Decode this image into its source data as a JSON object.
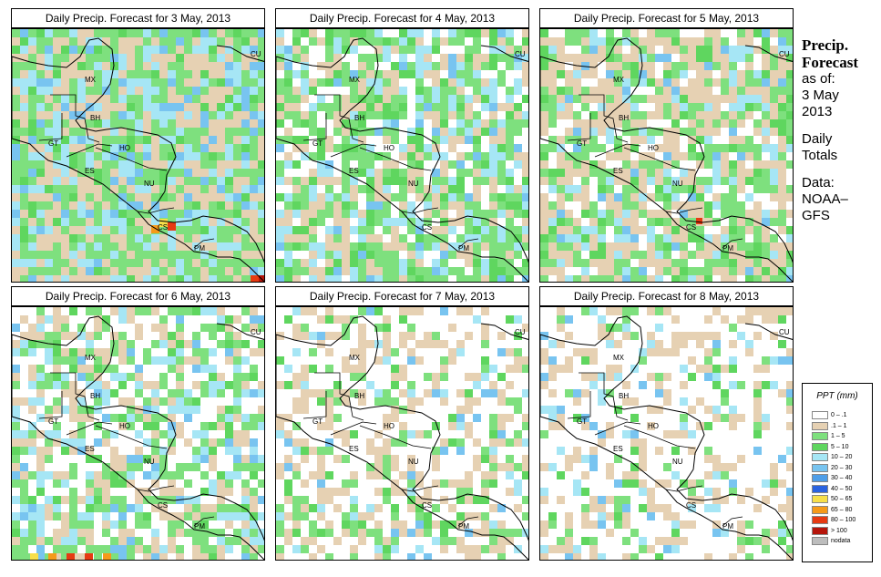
{
  "panels": [
    {
      "title": "Daily Precip. Forecast for  3 May, 2013"
    },
    {
      "title": "Daily Precip. Forecast for  4 May, 2013"
    },
    {
      "title": "Daily Precip. Forecast for  5 May, 2013"
    },
    {
      "title": "Daily Precip. Forecast for  6 May, 2013"
    },
    {
      "title": "Daily Precip. Forecast for  7 May, 2013"
    },
    {
      "title": "Daily Precip. Forecast for  8 May, 2013"
    }
  ],
  "country_labels": {
    "mx": "MX",
    "cu": "CU",
    "bh": "BH",
    "gt": "GT",
    "ho": "HO",
    "es": "ES",
    "nu": "NU",
    "cs": "CS",
    "pm": "PM"
  },
  "side": {
    "title_line1": "Precip.",
    "title_line2": "Forecast",
    "as_of": "as of:",
    "date_line1": "3 May",
    "date_line2": "2013",
    "daily_line1": "Daily",
    "daily_line2": "Totals",
    "data_line1": "Data:",
    "data_line2": "NOAA–",
    "data_line3": "GFS"
  },
  "legend": {
    "title": "PPT (mm)",
    "items": [
      {
        "label": "0 – .1",
        "color": "#ffffff"
      },
      {
        "label": ".1 – 1",
        "color": "#e6d1b3"
      },
      {
        "label": "1 – 5",
        "color": "#7ee07e"
      },
      {
        "label": "5 – 10",
        "color": "#5fd65f"
      },
      {
        "label": "10 – 20",
        "color": "#a6e6f5"
      },
      {
        "label": "20 – 30",
        "color": "#78c4f0"
      },
      {
        "label": "30 – 40",
        "color": "#4f9ee8"
      },
      {
        "label": "40 – 50",
        "color": "#2a63e0"
      },
      {
        "label": "50 – 65",
        "color": "#f7df4a"
      },
      {
        "label": "65 – 80",
        "color": "#f59a1a"
      },
      {
        "label": "80 – 100",
        "color": "#e63a12"
      },
      {
        "label": "> 100",
        "color": "#b5140a"
      },
      {
        "label": "nodata",
        "color": "#bdbdbd"
      }
    ]
  }
}
